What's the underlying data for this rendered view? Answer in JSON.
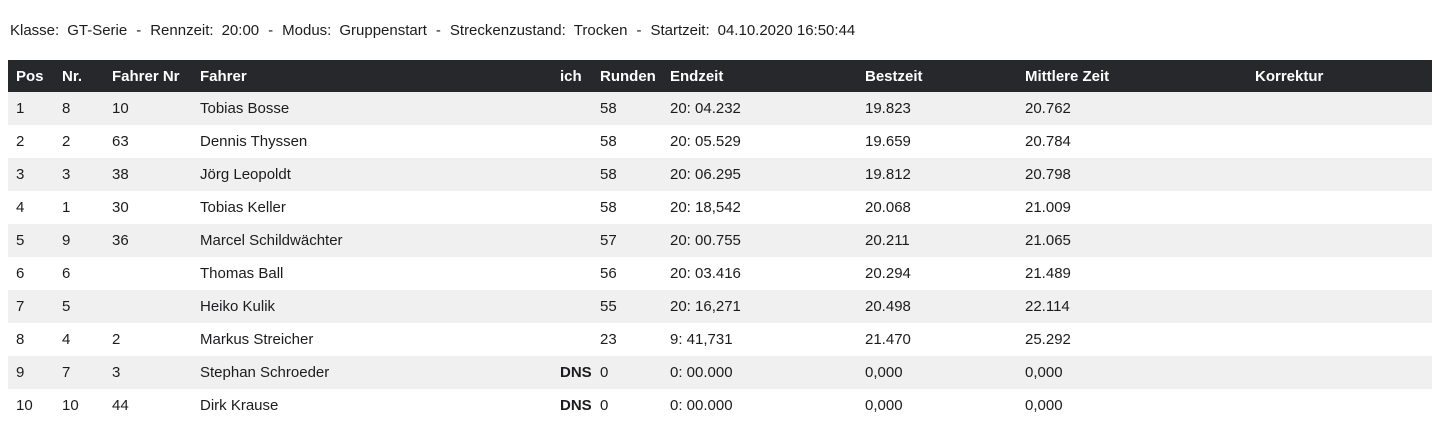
{
  "race_info": {
    "separator": "-",
    "items": [
      {
        "label": "Klasse:",
        "value": "GT-Serie"
      },
      {
        "label": "Rennzeit:",
        "value": "20:00"
      },
      {
        "label": "Modus:",
        "value": "Gruppenstart"
      },
      {
        "label": "Streckenzustand:",
        "value": "Trocken"
      },
      {
        "label": "Startzeit:",
        "value": "04.10.2020 16:50:44"
      }
    ]
  },
  "table": {
    "columns": [
      "Pos",
      "Nr.",
      "Fahrer Nr",
      "Fahrer",
      "ich",
      "Runden",
      "Endzeit",
      "Bestzeit",
      "Mittlere Zeit",
      "Korrektur"
    ],
    "column_keys": [
      "pos",
      "nr",
      "fahrer-nr",
      "fahrer",
      "ich",
      "runden",
      "endzeit",
      "bestzeit",
      "mittlere-zeit",
      "korrektur"
    ],
    "rows": [
      [
        "1",
        "8",
        "10",
        "Tobias Bosse",
        "",
        "58",
        "20: 04.232",
        "19.823",
        "20.762",
        ""
      ],
      [
        "2",
        "2",
        "63",
        "Dennis Thyssen",
        "",
        "58",
        "20: 05.529",
        "19.659",
        "20.784",
        ""
      ],
      [
        "3",
        "3",
        "38",
        "Jörg Leopoldt",
        "",
        "58",
        "20: 06.295",
        "19.812",
        "20.798",
        ""
      ],
      [
        "4",
        "1",
        "30",
        "Tobias Keller",
        "",
        "58",
        "20: 18,542",
        "20.068",
        "21.009",
        ""
      ],
      [
        "5",
        "9",
        "36",
        "Marcel Schildwächter",
        "",
        "57",
        "20: 00.755",
        "20.211",
        "21.065",
        ""
      ],
      [
        "6",
        "6",
        "",
        "Thomas Ball",
        "",
        "56",
        "20: 03.416",
        "20.294",
        "21.489",
        ""
      ],
      [
        "7",
        "5",
        "",
        "Heiko Kulik",
        "",
        "55",
        "20: 16,271",
        "20.498",
        "22.114",
        ""
      ],
      [
        "8",
        "4",
        "2",
        "Markus Streicher",
        "",
        "23",
        "9: 41,731",
        "21.470",
        "25.292",
        ""
      ],
      [
        "9",
        "7",
        "3",
        "Stephan Schroeder",
        "DNS",
        "0",
        "0: 00.000",
        "0,000",
        "0,000",
        ""
      ],
      [
        "10",
        "10",
        "44",
        "Dirk Krause",
        "DNS",
        "0",
        "0: 00.000",
        "0,000",
        "0,000",
        ""
      ]
    ]
  },
  "colors": {
    "header_bg": "#26282b",
    "header_text": "#ffffff",
    "row_alt_bg": "#f0f0f0",
    "text": "#1c1c1e"
  }
}
